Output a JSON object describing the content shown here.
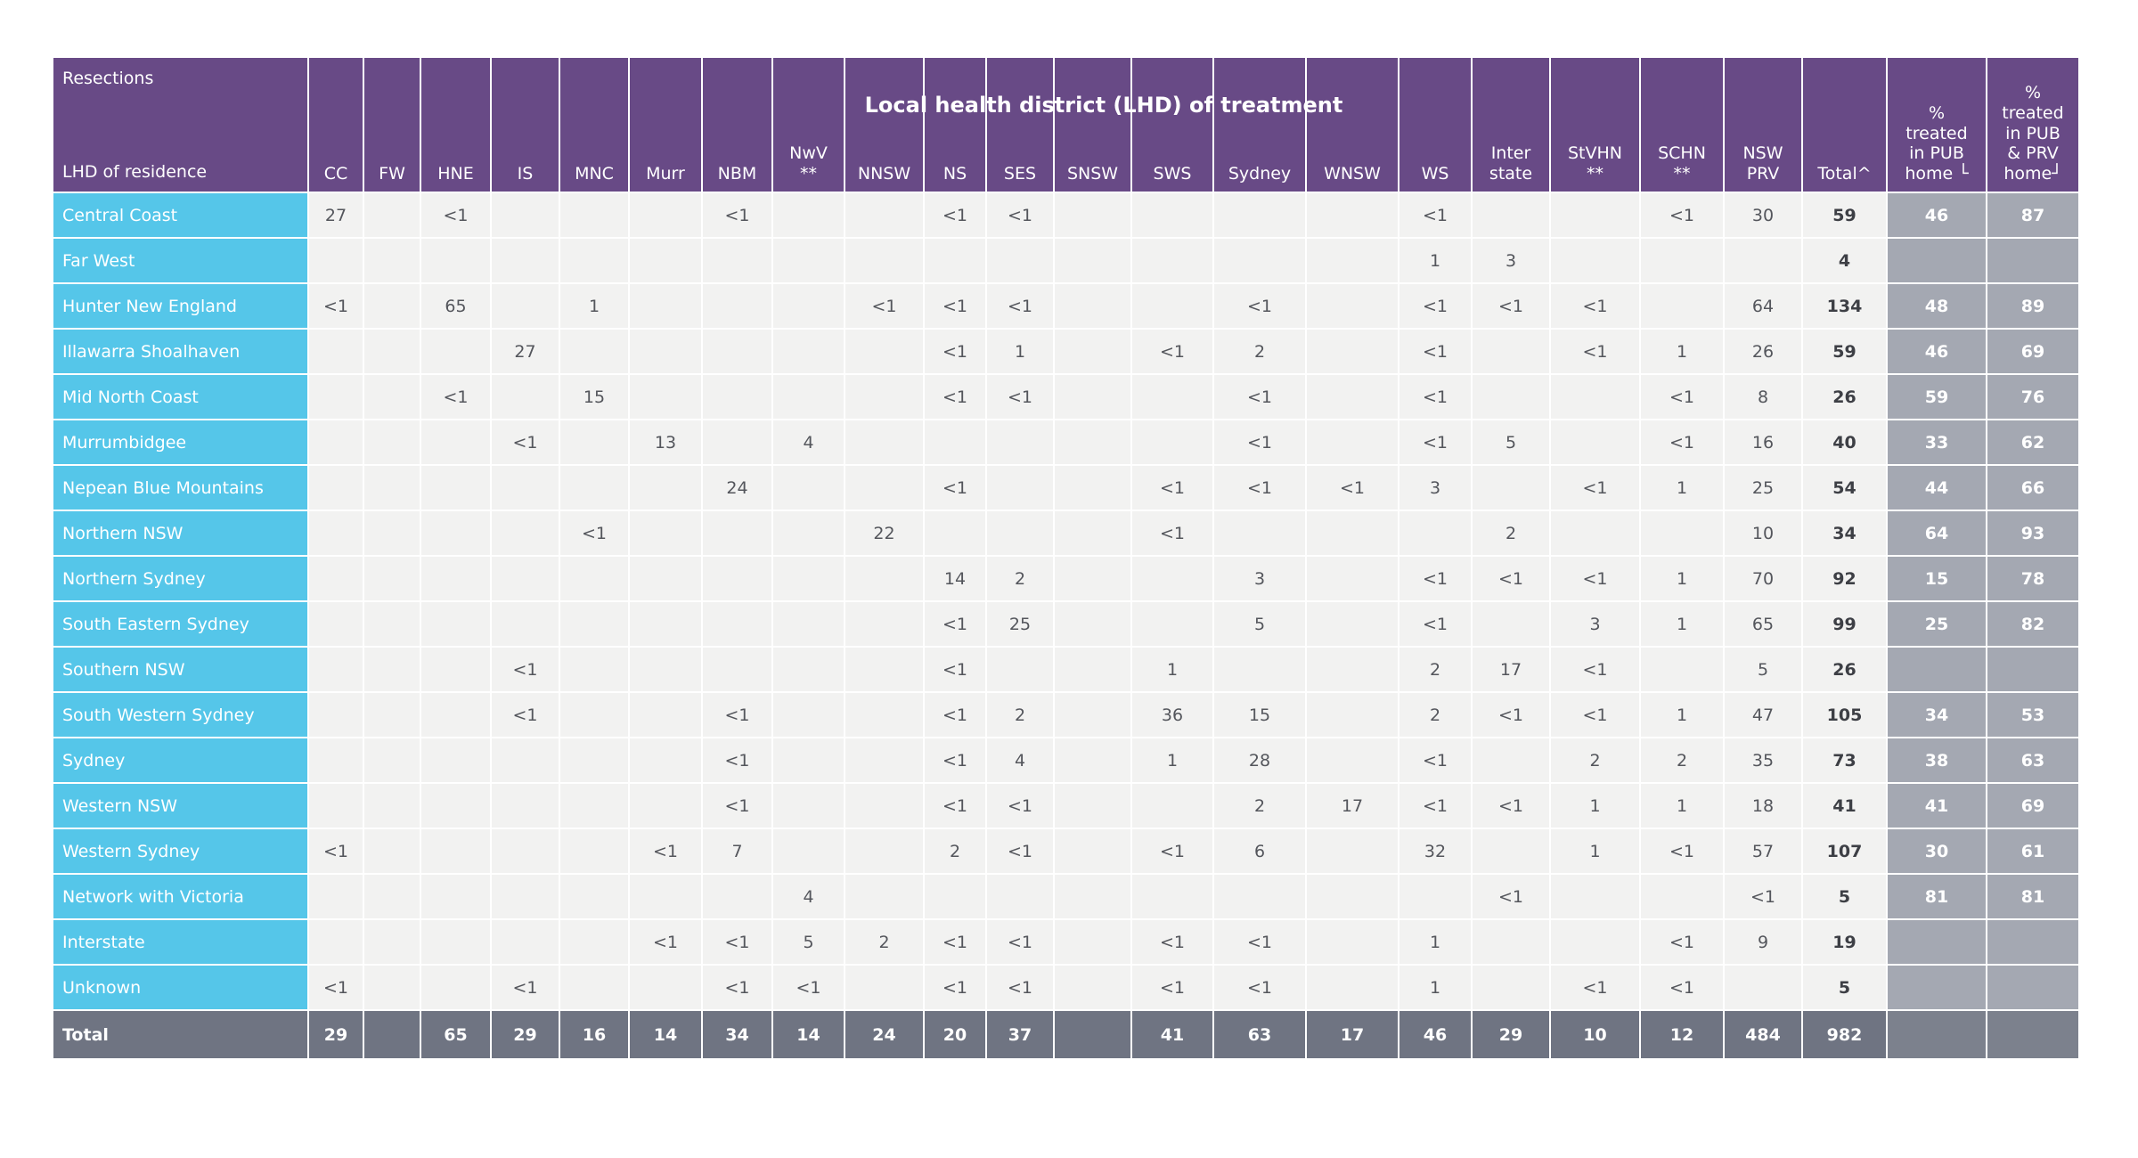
{
  "chart_data": {
    "type": "table",
    "title": "Local health district (LHD) of treatment",
    "corner": {
      "top": "Resections",
      "bottom": "LHD of residence"
    },
    "columns": [
      {
        "key": "cc",
        "label": "CC"
      },
      {
        "key": "fw",
        "label": "FW"
      },
      {
        "key": "hne",
        "label": "HNE"
      },
      {
        "key": "is",
        "label": "IS"
      },
      {
        "key": "mnc",
        "label": "MNC"
      },
      {
        "key": "murr",
        "label": "Murr"
      },
      {
        "key": "nbm",
        "label": "NBM"
      },
      {
        "key": "nwv",
        "label": "NwV\n**"
      },
      {
        "key": "nnsw",
        "label": "NNSW"
      },
      {
        "key": "ns",
        "label": "NS"
      },
      {
        "key": "ses",
        "label": "SES"
      },
      {
        "key": "snsw",
        "label": "SNSW"
      },
      {
        "key": "sws",
        "label": "SWS"
      },
      {
        "key": "sydney",
        "label": "Sydney"
      },
      {
        "key": "wnsw",
        "label": "WNSW"
      },
      {
        "key": "ws",
        "label": "WS"
      },
      {
        "key": "interstate",
        "label": "Inter\nstate"
      },
      {
        "key": "stvhn",
        "label": "StVHN\n**"
      },
      {
        "key": "schn",
        "label": "SCHN\n**"
      },
      {
        "key": "nsw-prv",
        "label": "NSW\nPRV"
      },
      {
        "key": "total",
        "label": "Total^"
      },
      {
        "key": "pct-pub",
        "label": "%\ntreated\nin PUB\nhome └"
      },
      {
        "key": "pct-pub-prv",
        "label": "%\ntreated\nin PUB\n& PRV\nhome┘"
      }
    ],
    "rows": [
      {
        "name": "Central Coast",
        "values": [
          "27",
          "",
          "<1",
          "",
          "",
          "",
          "<1",
          "",
          "",
          "<1",
          "<1",
          "",
          "",
          "",
          "",
          "<1",
          "",
          "",
          "<1",
          "30",
          "59",
          "46",
          "87"
        ]
      },
      {
        "name": "Far West",
        "values": [
          "",
          "",
          "",
          "",
          "",
          "",
          "",
          "",
          "",
          "",
          "",
          "",
          "",
          "",
          "",
          "1",
          "3",
          "",
          "",
          "",
          "4",
          "",
          ""
        ]
      },
      {
        "name": "Hunter New England",
        "values": [
          "<1",
          "",
          "65",
          "",
          "1",
          "",
          "",
          "",
          "<1",
          "<1",
          "<1",
          "",
          "",
          "<1",
          "",
          "<1",
          "<1",
          "<1",
          "",
          "64",
          "134",
          "48",
          "89"
        ]
      },
      {
        "name": "Illawarra Shoalhaven",
        "values": [
          "",
          "",
          "",
          "27",
          "",
          "",
          "",
          "",
          "",
          "<1",
          "1",
          "",
          "<1",
          "2",
          "",
          "<1",
          "",
          "<1",
          "1",
          "26",
          "59",
          "46",
          "69"
        ]
      },
      {
        "name": "Mid North Coast",
        "values": [
          "",
          "",
          "<1",
          "",
          "15",
          "",
          "",
          "",
          "",
          "<1",
          "<1",
          "",
          "",
          "<1",
          "",
          "<1",
          "",
          "",
          "<1",
          "8",
          "26",
          "59",
          "76"
        ]
      },
      {
        "name": "Murrumbidgee",
        "values": [
          "",
          "",
          "",
          "<1",
          "",
          "13",
          "",
          "4",
          "",
          "",
          "",
          "",
          "",
          "<1",
          "",
          "<1",
          "5",
          "",
          "<1",
          "16",
          "40",
          "33",
          "62"
        ]
      },
      {
        "name": "Nepean Blue Mountains",
        "values": [
          "",
          "",
          "",
          "",
          "",
          "",
          "24",
          "",
          "",
          "<1",
          "",
          "",
          "<1",
          "<1",
          "<1",
          "3",
          "",
          "<1",
          "1",
          "25",
          "54",
          "44",
          "66"
        ]
      },
      {
        "name": "Northern NSW",
        "values": [
          "",
          "",
          "",
          "",
          "<1",
          "",
          "",
          "",
          "22",
          "",
          "",
          "",
          "<1",
          "",
          "",
          "",
          "2",
          "",
          "",
          "10",
          "34",
          "64",
          "93"
        ]
      },
      {
        "name": "Northern Sydney",
        "values": [
          "",
          "",
          "",
          "",
          "",
          "",
          "",
          "",
          "",
          "14",
          "2",
          "",
          "",
          "3",
          "",
          "<1",
          "<1",
          "<1",
          "1",
          "70",
          "92",
          "15",
          "78"
        ]
      },
      {
        "name": "South Eastern Sydney",
        "values": [
          "",
          "",
          "",
          "",
          "",
          "",
          "",
          "",
          "",
          "<1",
          "25",
          "",
          "",
          "5",
          "",
          "<1",
          "",
          "3",
          "1",
          "65",
          "99",
          "25",
          "82"
        ]
      },
      {
        "name": "Southern NSW",
        "values": [
          "",
          "",
          "",
          "<1",
          "",
          "",
          "",
          "",
          "",
          "<1",
          "",
          "",
          "1",
          "",
          "",
          "2",
          "17",
          "<1",
          "",
          "5",
          "26",
          "",
          ""
        ]
      },
      {
        "name": "South Western Sydney",
        "values": [
          "",
          "",
          "",
          "<1",
          "",
          "",
          "<1",
          "",
          "",
          "<1",
          "2",
          "",
          "36",
          "15",
          "",
          "2",
          "<1",
          "<1",
          "1",
          "47",
          "105",
          "34",
          "53"
        ]
      },
      {
        "name": "Sydney",
        "values": [
          "",
          "",
          "",
          "",
          "",
          "",
          "<1",
          "",
          "",
          "<1",
          "4",
          "",
          "1",
          "28",
          "",
          "<1",
          "",
          "2",
          "2",
          "35",
          "73",
          "38",
          "63"
        ]
      },
      {
        "name": "Western NSW",
        "values": [
          "",
          "",
          "",
          "",
          "",
          "",
          "<1",
          "",
          "",
          "<1",
          "<1",
          "",
          "",
          "2",
          "17",
          "<1",
          "<1",
          "1",
          "1",
          "18",
          "41",
          "41",
          "69"
        ]
      },
      {
        "name": "Western Sydney",
        "values": [
          "<1",
          "",
          "",
          "",
          "",
          "<1",
          "7",
          "",
          "",
          "2",
          "<1",
          "",
          "<1",
          "6",
          "",
          "32",
          "",
          "1",
          "<1",
          "57",
          "107",
          "30",
          "61"
        ]
      },
      {
        "name": "Network with Victoria",
        "values": [
          "",
          "",
          "",
          "",
          "",
          "",
          "",
          "4",
          "",
          "",
          "",
          "",
          "",
          "",
          "",
          "",
          "<1",
          "",
          "",
          "<1",
          "5",
          "81",
          "81"
        ]
      },
      {
        "name": "Interstate",
        "values": [
          "",
          "",
          "",
          "",
          "",
          "<1",
          "<1",
          "5",
          "2",
          "<1",
          "<1",
          "",
          "<1",
          "<1",
          "",
          "1",
          "",
          "",
          "<1",
          "9",
          "19",
          "",
          ""
        ]
      },
      {
        "name": "Unknown",
        "values": [
          "<1",
          "",
          "",
          "<1",
          "",
          "",
          "<1",
          "<1",
          "",
          "<1",
          "<1",
          "",
          "<1",
          "<1",
          "",
          "1",
          "",
          "<1",
          "<1",
          "",
          "5",
          "",
          ""
        ]
      }
    ],
    "total_row": {
      "name": "Total",
      "values": [
        "29",
        "",
        "65",
        "29",
        "16",
        "14",
        "34",
        "14",
        "24",
        "20",
        "37",
        "",
        "41",
        "63",
        "17",
        "46",
        "29",
        "10",
        "12",
        "484",
        "982",
        "",
        ""
      ]
    },
    "colors": {
      "header_purple": "#684a86",
      "row_label_cyan": "#55c6e9",
      "cell_bg": "#f2f2f1",
      "pct_gray": "#a4a8b2",
      "total_row_gray": "#6f7482",
      "total_pct_gray": "#7c818d"
    }
  }
}
